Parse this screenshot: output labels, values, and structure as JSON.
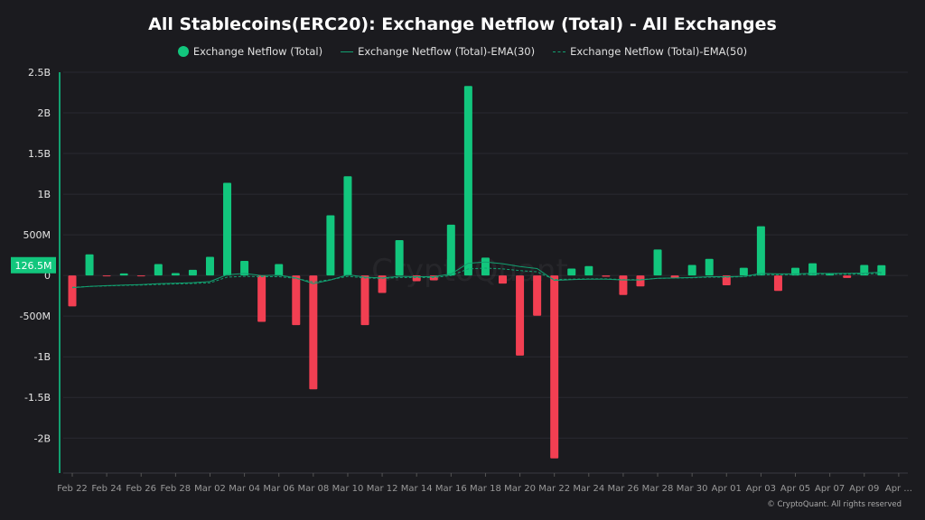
{
  "chart_data": {
    "type": "bar",
    "title": "All Stablecoins(ERC20): Exchange Netflow (Total) - All Exchanges",
    "legend": [
      {
        "label": "Exchange Netflow (Total)",
        "style": "dot"
      },
      {
        "label": "Exchange Netflow (Total)-EMA(30)",
        "style": "solid"
      },
      {
        "label": "Exchange Netflow (Total)-EMA(50)",
        "style": "dashed"
      }
    ],
    "legend_position": "top",
    "grid": true,
    "ylim": [
      -2430000000,
      2500000000
    ],
    "y_ticks": [
      {
        "value": 2500000000,
        "label": "2.5B"
      },
      {
        "value": 2000000000,
        "label": "2B"
      },
      {
        "value": 1500000000,
        "label": "1.5B"
      },
      {
        "value": 1000000000,
        "label": "1B"
      },
      {
        "value": 500000000,
        "label": "500M"
      },
      {
        "value": 0,
        "label": "0"
      },
      {
        "value": -500000000,
        "label": "-500M"
      },
      {
        "value": -1000000000,
        "label": "-1B"
      },
      {
        "value": -1500000000,
        "label": "-1.5B"
      },
      {
        "value": -2000000000,
        "label": "-2B"
      }
    ],
    "x_tick_labels": [
      "Feb 22",
      "Feb 24",
      "Feb 26",
      "Feb 28",
      "Mar 02",
      "Mar 04",
      "Mar 06",
      "Mar 08",
      "Mar 10",
      "Mar 12",
      "Mar 14",
      "Mar 16",
      "Mar 18",
      "Mar 20",
      "Mar 22",
      "Mar 24",
      "Mar 26",
      "Mar 28",
      "Mar 30",
      "Apr 01",
      "Apr 03",
      "Apr 05",
      "Apr 07",
      "Apr 09",
      "Apr ..."
    ],
    "categories": [
      "Feb 22",
      "Feb 23",
      "Feb 24",
      "Feb 25",
      "Feb 26",
      "Feb 27",
      "Feb 28",
      "Mar 01",
      "Mar 02",
      "Mar 03",
      "Mar 04",
      "Mar 05",
      "Mar 06",
      "Mar 07",
      "Mar 08",
      "Mar 09",
      "Mar 10",
      "Mar 11",
      "Mar 12",
      "Mar 13",
      "Mar 14",
      "Mar 15",
      "Mar 16",
      "Mar 17",
      "Mar 18",
      "Mar 19",
      "Mar 20",
      "Mar 21",
      "Mar 22",
      "Mar 23",
      "Mar 24",
      "Mar 25",
      "Mar 26",
      "Mar 27",
      "Mar 28",
      "Mar 29",
      "Mar 30",
      "Mar 31",
      "Apr 01",
      "Apr 02",
      "Apr 03",
      "Apr 04",
      "Apr 05",
      "Apr 06",
      "Apr 07",
      "Apr 08",
      "Apr 09",
      "Apr 10"
    ],
    "series": [
      {
        "name": "Exchange Netflow (Total)",
        "positive_color": "#12c67d",
        "negative_color": "#f23f52",
        "values": [
          -380000000,
          260000000,
          -5000000,
          25000000,
          -5000000,
          140000000,
          30000000,
          70000000,
          230000000,
          1140000000,
          180000000,
          -570000000,
          140000000,
          -610000000,
          -1400000000,
          740000000,
          1220000000,
          -610000000,
          -215000000,
          435000000,
          -70000000,
          -60000000,
          625000000,
          2330000000,
          220000000,
          -100000000,
          -985000000,
          -495000000,
          -2250000000,
          85000000,
          115000000,
          -15000000,
          -240000000,
          -135000000,
          320000000,
          -30000000,
          130000000,
          205000000,
          -120000000,
          95000000,
          605000000,
          -190000000,
          95000000,
          150000000,
          25000000,
          -30000000,
          130000000,
          126500000
        ]
      },
      {
        "name": "Exchange Netflow (Total)-EMA(30)",
        "color": "#12a070",
        "line": "solid",
        "values": [
          -150000000,
          -135000000,
          -125000000,
          -118000000,
          -112000000,
          -102000000,
          -95000000,
          -88000000,
          -75000000,
          10000000,
          25000000,
          0,
          5000000,
          -30000000,
          -100000000,
          -55000000,
          10000000,
          -20000000,
          -30000000,
          -10000000,
          -15000000,
          -15000000,
          20000000,
          150000000,
          165000000,
          145000000,
          110000000,
          85000000,
          -60000000,
          -50000000,
          -45000000,
          -45000000,
          -55000000,
          -55000000,
          -35000000,
          -30000000,
          -25000000,
          -15000000,
          -15000000,
          -10000000,
          25000000,
          20000000,
          20000000,
          25000000,
          25000000,
          25000000,
          30000000,
          40000000
        ]
      },
      {
        "name": "Exchange Netflow (Total)-EMA(50)",
        "color": "#12a070",
        "line": "dashed",
        "values": [
          -145000000,
          -135000000,
          -128000000,
          -122000000,
          -117000000,
          -110000000,
          -104000000,
          -98000000,
          -90000000,
          -20000000,
          -10000000,
          -15000000,
          -15000000,
          -35000000,
          -80000000,
          -50000000,
          -10000000,
          -30000000,
          -35000000,
          -25000000,
          -25000000,
          -25000000,
          0,
          80000000,
          90000000,
          80000000,
          60000000,
          45000000,
          -50000000,
          -45000000,
          -42000000,
          -42000000,
          -50000000,
          -50000000,
          -35000000,
          -32000000,
          -28000000,
          -20000000,
          -20000000,
          -15000000,
          10000000,
          10000000,
          12000000,
          15000000,
          15000000,
          15000000,
          18000000,
          25000000
        ]
      }
    ],
    "current_value_label": "126.5M",
    "watermark": "CryptoQuant"
  },
  "footer": "© CryptoQuant. All rights reserved"
}
